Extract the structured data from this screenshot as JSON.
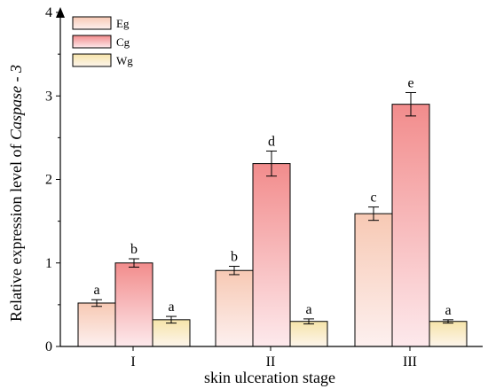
{
  "chart_data": {
    "type": "bar",
    "categories": [
      "I",
      "II",
      "III"
    ],
    "xlabel": "skin ulceration stage",
    "ylabel_prefix": "Relative expression level of ",
    "ylabel_italic": "Caspase - 3",
    "ylim": [
      0,
      4
    ],
    "yticks": [
      "0",
      "1",
      "2",
      "3",
      "4"
    ],
    "legend_position": "top-left",
    "series": [
      {
        "name": "Eg",
        "color_top": "#f7c9b4",
        "color_bottom": "#fdf0ef",
        "values": [
          0.52,
          0.91,
          1.59
        ],
        "errors": [
          0.04,
          0.05,
          0.08
        ],
        "labels": [
          "a",
          "b",
          "c"
        ]
      },
      {
        "name": "Cg",
        "color_top": "#f28c8c",
        "color_bottom": "#fde9ec",
        "values": [
          1.0,
          2.19,
          2.9
        ],
        "errors": [
          0.05,
          0.15,
          0.14
        ],
        "labels": [
          "b",
          "d",
          "e"
        ]
      },
      {
        "name": "Wg",
        "color_top": "#f6e4aa",
        "color_bottom": "#fdf5ec",
        "values": [
          0.32,
          0.3,
          0.3
        ],
        "errors": [
          0.04,
          0.03,
          0.02
        ],
        "labels": [
          "a",
          "a",
          "a"
        ]
      }
    ]
  }
}
